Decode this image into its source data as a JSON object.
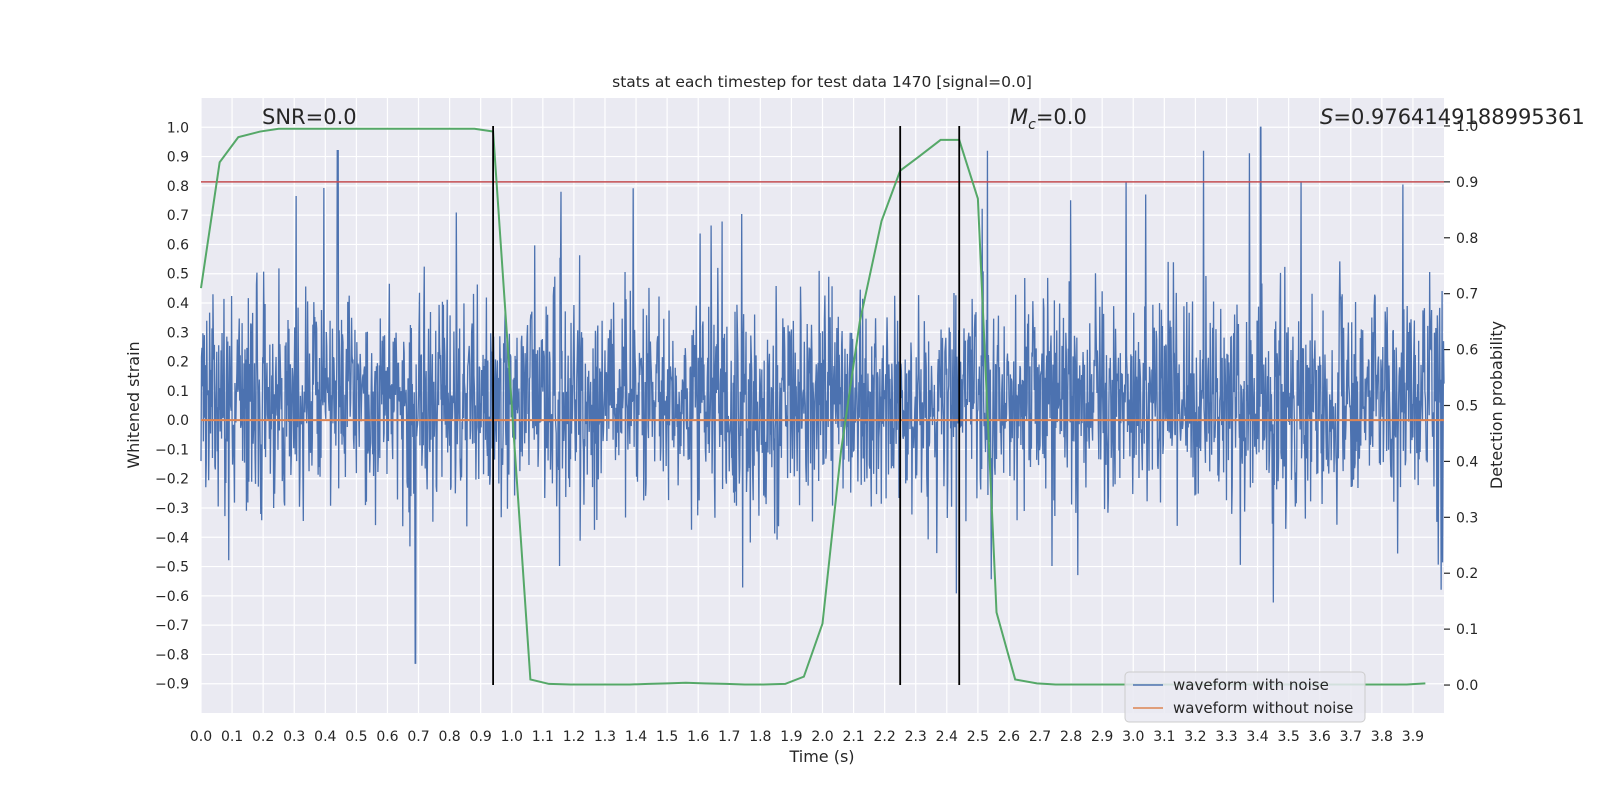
{
  "chart_data": {
    "type": "line",
    "title": "stats at each timestep for test data 1470 [signal=0.0]",
    "xlabel": "Time (s)",
    "ylabel": "Whitened strain",
    "y2label": "Detection probability",
    "xlim": [
      0.0,
      4.0
    ],
    "ylim": [
      -1.0,
      1.1
    ],
    "y2lim": [
      -0.05,
      1.05
    ],
    "x_ticks": [
      "0.0",
      "0.1",
      "0.2",
      "0.3",
      "0.4",
      "0.5",
      "0.6",
      "0.7",
      "0.8",
      "0.9",
      "1.0",
      "1.1",
      "1.2",
      "1.3",
      "1.4",
      "1.5",
      "1.6",
      "1.7",
      "1.8",
      "1.9",
      "2.0",
      "2.1",
      "2.2",
      "2.3",
      "2.4",
      "2.5",
      "2.6",
      "2.7",
      "2.8",
      "2.9",
      "3.0",
      "3.1",
      "3.2",
      "3.3",
      "3.4",
      "3.5",
      "3.6",
      "3.7",
      "3.8",
      "3.9"
    ],
    "y_ticks": [
      "1.0",
      "0.9",
      "0.8",
      "0.7",
      "0.6",
      "0.5",
      "0.4",
      "0.3",
      "0.2",
      "0.1",
      "0.0",
      "-0.1",
      "-0.2",
      "-0.3",
      "-0.4",
      "-0.5",
      "-0.6",
      "-0.7",
      "-0.8",
      "-0.9"
    ],
    "y2_ticks": [
      "1.0",
      "0.9",
      "0.8",
      "0.7",
      "0.6",
      "0.5",
      "0.4",
      "0.3",
      "0.2",
      "0.1",
      "0.0"
    ],
    "annotations": {
      "snr": "SNR=0.0",
      "mc_symbol": "M",
      "mc_sub": "c",
      "mc_value": "=0.0",
      "s_symbol": "S",
      "s_value": "=0.9764149188995361"
    },
    "legend": {
      "placement": "lower-right",
      "entries": [
        "waveform with noise",
        "waveform without noise"
      ]
    },
    "grid": true,
    "colors": {
      "noise": "#4c72b0",
      "clean": "#dd8452",
      "probability": "#55a868",
      "threshold": "#c44e52",
      "marker": "#000000",
      "axes_bg": "#eaeaf2"
    },
    "threshold_probability": 0.9,
    "vertical_markers_x": [
      0.94,
      2.25,
      2.44
    ],
    "series": [
      {
        "name": "waveform with noise",
        "envelope_approx": "random whitened-strain noise, roughly within -0.9 to 1.0, peaks near 0.94 at t=0.44 and 1.0 at t=3.41"
      },
      {
        "name": "waveform without noise",
        "x": [
          0.0,
          4.0
        ],
        "y": [
          0.0,
          0.0
        ]
      },
      {
        "role": "detection probability",
        "x": [
          0.0,
          0.06,
          0.12,
          0.19,
          0.25,
          0.31,
          0.38,
          0.44,
          0.5,
          0.56,
          0.62,
          0.69,
          0.75,
          0.81,
          0.88,
          0.94,
          1.0,
          1.06,
          1.12,
          1.19,
          1.25,
          1.31,
          1.38,
          1.44,
          1.5,
          1.56,
          1.62,
          1.69,
          1.75,
          1.81,
          1.88,
          1.94,
          2.0,
          2.06,
          2.12,
          2.19,
          2.25,
          2.31,
          2.38,
          2.44,
          2.5,
          2.56,
          2.62,
          2.69,
          2.75,
          2.81,
          2.88,
          2.94,
          3.0,
          3.06,
          3.12,
          3.19,
          3.25,
          3.31,
          3.38,
          3.44,
          3.5,
          3.56,
          3.62,
          3.69,
          3.75,
          3.81,
          3.88,
          3.94
        ],
        "y": [
          0.71,
          0.935,
          0.98,
          0.99,
          0.995,
          0.995,
          0.995,
          0.995,
          0.995,
          0.995,
          0.995,
          0.995,
          0.995,
          0.995,
          0.995,
          0.99,
          0.5,
          0.01,
          0.002,
          0.001,
          0.001,
          0.001,
          0.001,
          0.002,
          0.003,
          0.004,
          0.003,
          0.002,
          0.001,
          0.001,
          0.002,
          0.015,
          0.11,
          0.42,
          0.65,
          0.83,
          0.92,
          0.945,
          0.975,
          0.975,
          0.87,
          0.13,
          0.01,
          0.003,
          0.001,
          0.001,
          0.001,
          0.001,
          0.001,
          0.001,
          0.001,
          0.001,
          0.001,
          0.001,
          0.001,
          0.001,
          0.001,
          0.001,
          0.001,
          0.001,
          0.001,
          0.001,
          0.001,
          0.003
        ]
      }
    ]
  }
}
